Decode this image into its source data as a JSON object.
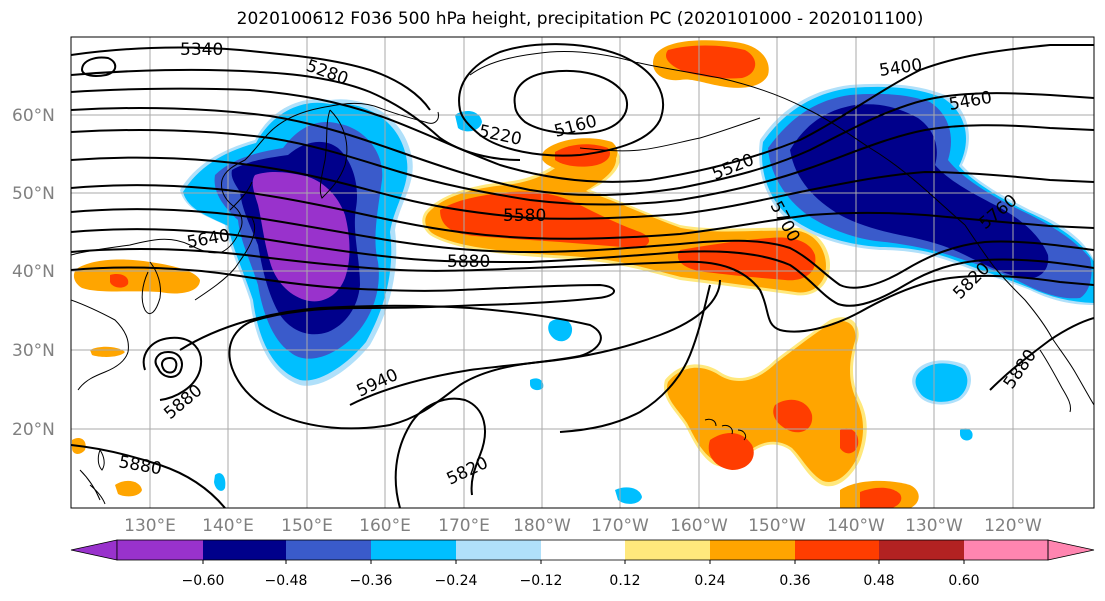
{
  "title": "2020100612 F036 500 hPa height, precipitation PC (2020101000 - 2020101100)",
  "map": {
    "lat_labels": [
      "60°N",
      "50°N",
      "40°N",
      "30°N",
      "20°N"
    ],
    "lon_labels": [
      "130°E",
      "140°E",
      "150°E",
      "160°E",
      "170°E",
      "180°W",
      "170°W",
      "160°W",
      "150°W",
      "140°W",
      "130°W",
      "120°W"
    ],
    "contour_labels": [
      "5340",
      "5280",
      "5220",
      "5160",
      "5400",
      "5460",
      "5520",
      "5580",
      "5700",
      "5760",
      "5640",
      "5880",
      "5820",
      "5940",
      "5880",
      "5880",
      "5880",
      "5820"
    ]
  },
  "colorbar": {
    "ticks": [
      "−0.60",
      "−0.48",
      "−0.36",
      "−0.24",
      "−0.12",
      "0.12",
      "0.24",
      "0.36",
      "0.48",
      "0.60"
    ],
    "colors": [
      "#9932cc",
      "#00008b",
      "#3a5bcb",
      "#00bfff",
      "#b0e0fa",
      "#ffffff",
      "#ffe87c",
      "#ffa500",
      "#ff3d00",
      "#b22222",
      "#ff85b0"
    ]
  },
  "colors": {
    "purple": "#9932cc",
    "navy": "#00008b",
    "royal": "#3a5bcb",
    "sky": "#00bfff",
    "light_blue": "#b0e0fa",
    "yellow": "#ffe87c",
    "orange": "#ffa500",
    "red_orange": "#ff3d00",
    "grid": "#aaaaaa"
  }
}
